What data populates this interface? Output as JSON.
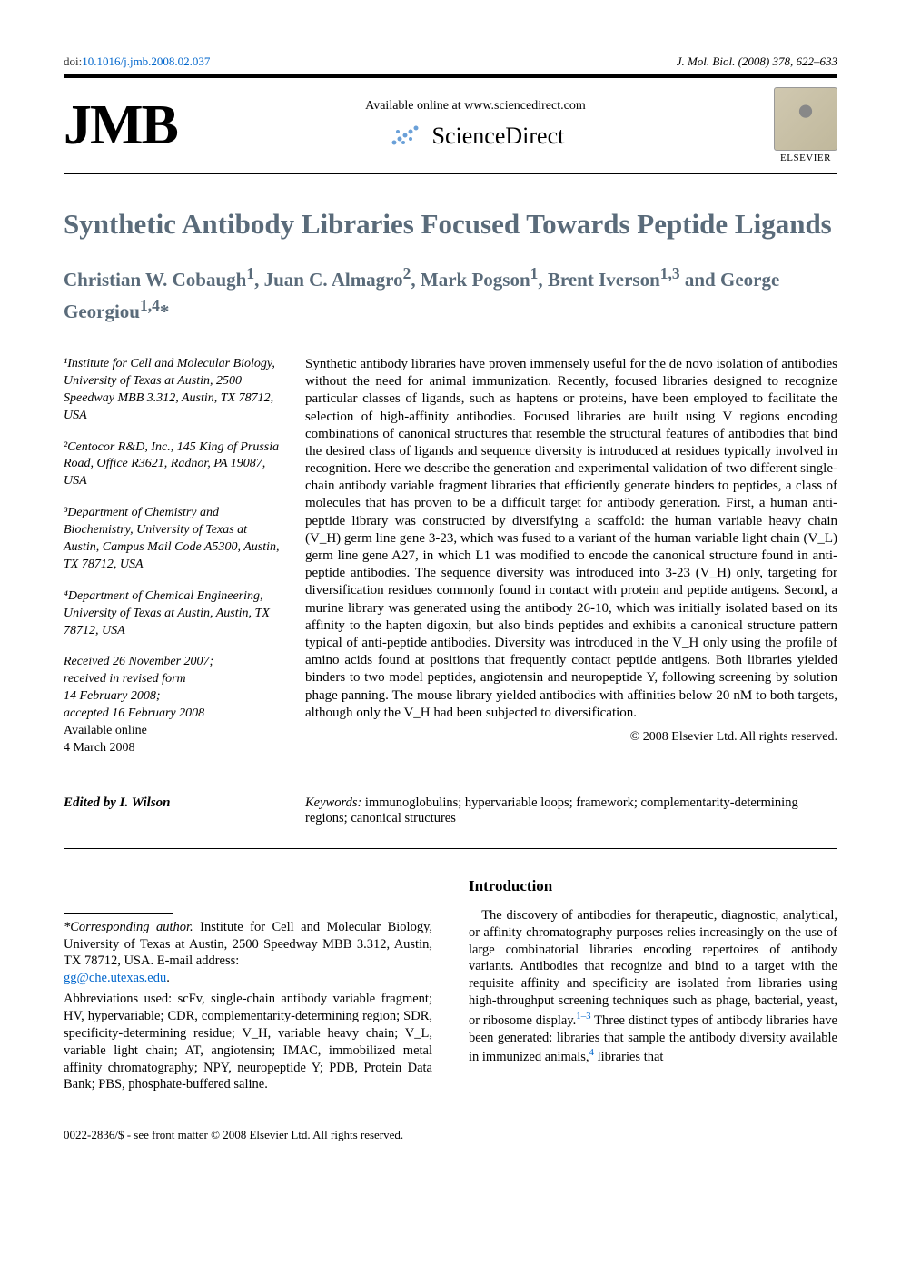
{
  "doi_prefix": "doi:",
  "doi": "10.1016/j.jmb.2008.02.037",
  "journal_ref": "J. Mol. Biol. (2008) 378, 622–633",
  "jmb_logo": "JMB",
  "available_text": "Available online at www.sciencedirect.com",
  "sciencedirect_text": "ScienceDirect",
  "elsevier_label": "ELSEVIER",
  "title": "Synthetic Antibody Libraries Focused Towards Peptide Ligands",
  "authors_html": "Christian W. Cobaugh<sup>1</sup>, Juan C. Almagro<sup>2</sup>, Mark Pogson<sup>1</sup>, Brent Iverson<sup>1,3</sup> and George Georgiou<sup>1,4</sup>*",
  "affiliations": [
    "¹Institute for Cell and Molecular Biology, University of Texas at Austin, 2500 Speedway MBB 3.312, Austin, TX 78712, USA",
    "²Centocor R&D, Inc., 145 King of Prussia Road, Office R3621, Radnor, PA 19087, USA",
    "³Department of Chemistry and Biochemistry, University of Texas at Austin, Campus Mail Code A5300, Austin, TX 78712, USA",
    "⁴Department of Chemical Engineering, University of Texas at Austin, Austin, TX 78712, USA"
  ],
  "received_block": {
    "l1": "Received 26 November 2007;",
    "l2": "received in revised form",
    "l3": "14 February 2008;",
    "l4": "accepted 16 February 2008",
    "l5": "Available online",
    "l6": "4 March 2008"
  },
  "abstract": "Synthetic antibody libraries have proven immensely useful for the de novo isolation of antibodies without the need for animal immunization. Recently, focused libraries designed to recognize particular classes of ligands, such as haptens or proteins, have been employed to facilitate the selection of high-affinity antibodies. Focused libraries are built using V regions encoding combinations of canonical structures that resemble the structural features of antibodies that bind the desired class of ligands and sequence diversity is introduced at residues typically involved in recognition. Here we describe the generation and experimental validation of two different single-chain antibody variable fragment libraries that efficiently generate binders to peptides, a class of molecules that has proven to be a difficult target for antibody generation. First, a human anti-peptide library was constructed by diversifying a scaffold: the human variable heavy chain (V_H) germ line gene 3-23, which was fused to a variant of the human variable light chain (V_L) germ line gene A27, in which L1 was modified to encode the canonical structure found in anti-peptide antibodies. The sequence diversity was introduced into 3-23 (V_H) only, targeting for diversification residues commonly found in contact with protein and peptide antigens. Second, a murine library was generated using the antibody 26-10, which was initially isolated based on its affinity to the hapten digoxin, but also binds peptides and exhibits a canonical structure pattern typical of anti-peptide antibodies. Diversity was introduced in the V_H only using the profile of amino acids found at positions that frequently contact peptide antigens. Both libraries yielded binders to two model peptides, angiotensin and neuropeptide Y, following screening by solution phage panning. The mouse library yielded antibodies with affinities below 20 nM to both targets, although only the V_H had been subjected to diversification.",
  "copyright": "© 2008 Elsevier Ltd. All rights reserved.",
  "keywords_label": "Keywords:",
  "keywords": " immunoglobulins; hypervariable loops; framework; complementarity-determining regions; canonical structures",
  "edited_by": "Edited by I. Wilson",
  "corresponding_label": "*Corresponding author.",
  "corresponding_text": " Institute for Cell and Molecular Biology, University of Texas at Austin, 2500 Speedway MBB 3.312, Austin, TX 78712, USA. E-mail address: ",
  "email": "gg@che.utexas.edu",
  "abbrev_label": "Abbreviations used: ",
  "abbrev_text": "scFv, single-chain antibody variable fragment; HV, hypervariable; CDR, complementarity-determining region; SDR, specificity-determining residue; V_H, variable heavy chain; V_L, variable light chain; AT, angiotensin; IMAC, immobilized metal affinity chromatography; NPY, neuropeptide Y; PDB, Protein Data Bank; PBS, phosphate-buffered saline.",
  "intro_heading": "Introduction",
  "intro_text_1": "The discovery of antibodies for therapeutic, diagnostic, analytical, or affinity chromatography purposes relies increasingly on the use of large combinatorial libraries encoding repertoires of antibody variants. Antibodies that recognize and bind to a target with the requisite affinity and specificity are isolated from libraries using high-throughput screening techniques such as phage, bacterial, yeast, or ribosome display.",
  "intro_ref_1": "1–3",
  "intro_text_2": " Three distinct types of antibody libraries have been generated: libraries that sample the antibody diversity available in immunized animals,",
  "intro_ref_2": "4",
  "intro_text_3": " libraries that",
  "footer_line": "0022-2836/$ - see front matter © 2008 Elsevier Ltd. All rights reserved.",
  "colors": {
    "heading": "#5a6b7a",
    "link": "#0066cc",
    "text": "#000000",
    "bg": "#ffffff"
  },
  "dots_svg_color": "#6aa0d8"
}
